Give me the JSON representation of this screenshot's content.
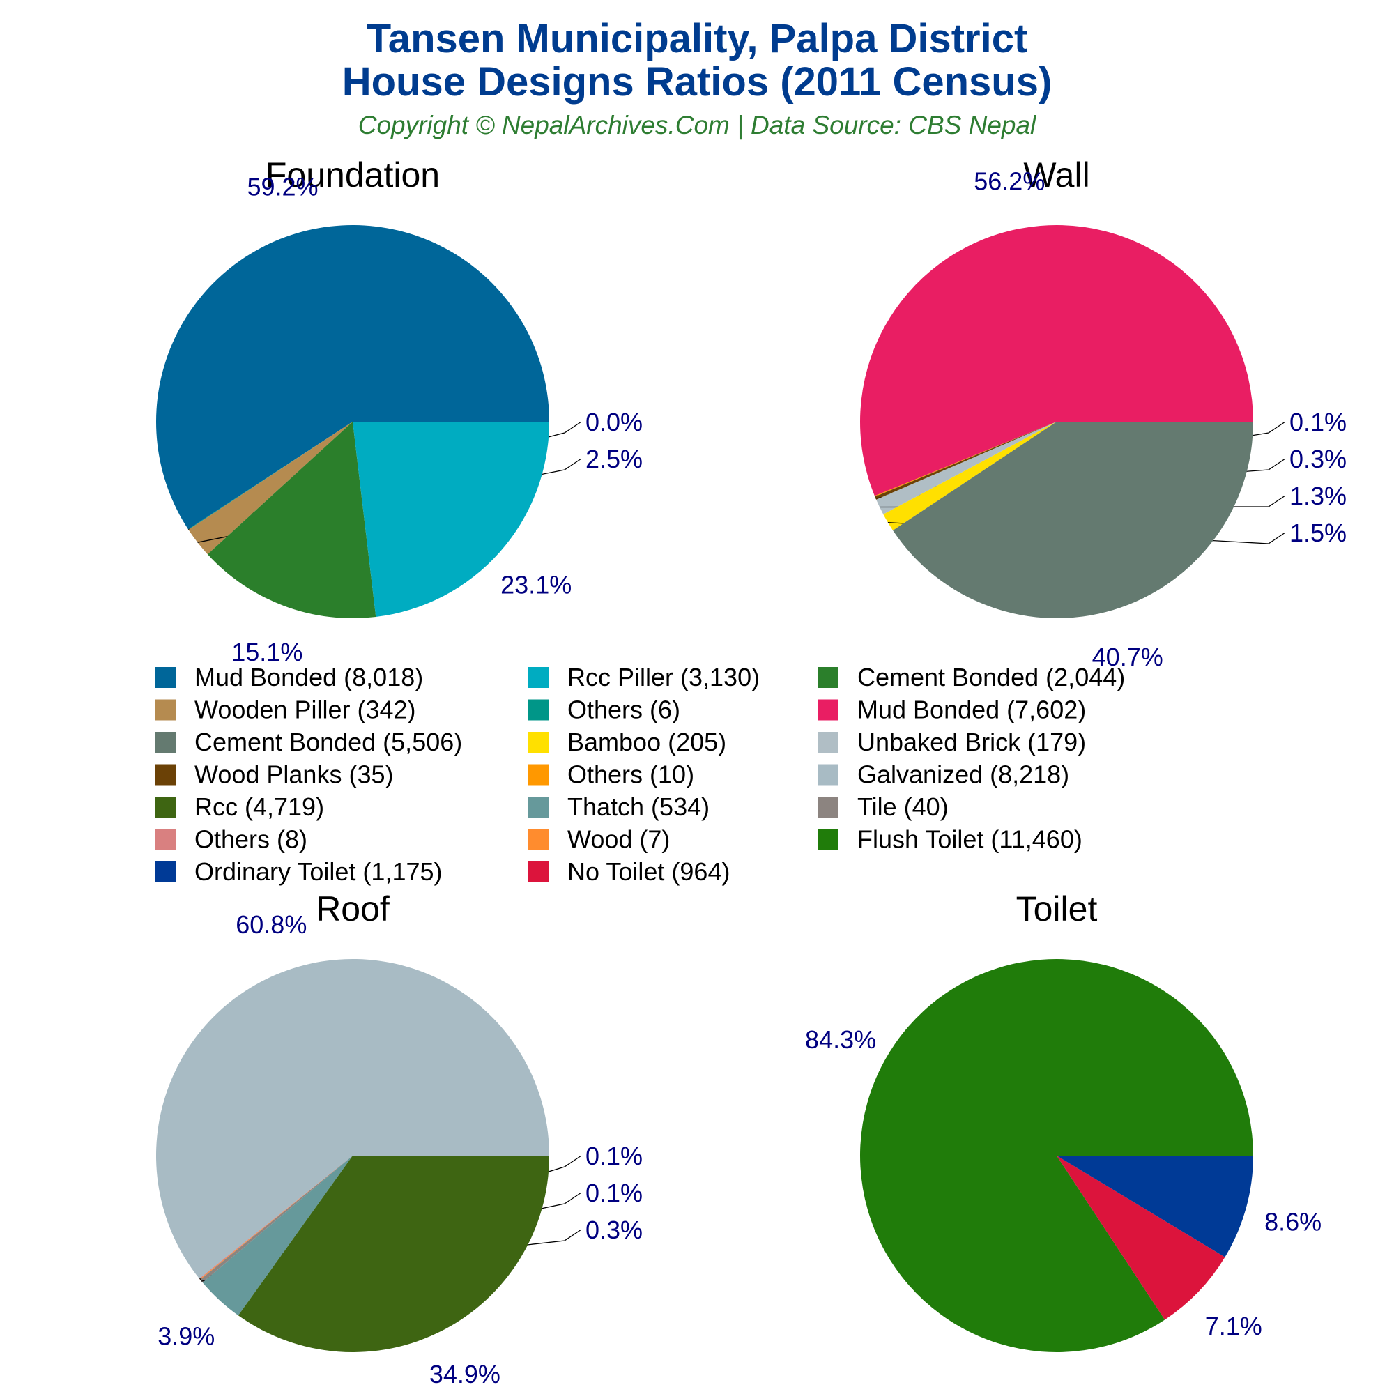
{
  "header": {
    "title_line1": "Tansen Municipality, Palpa District",
    "title_line2": "House Designs Ratios (2011 Census)",
    "subtitle": "Copyright © NepalArchives.Com | Data Source: CBS Nepal"
  },
  "chart_data": [
    {
      "type": "pie",
      "title": "Foundation",
      "slices": [
        {
          "label": "Mud Bonded",
          "value": 8018,
          "pct_label": "59.2%",
          "color": "#006699"
        },
        {
          "label": "Others",
          "value": 6,
          "pct_label": "0.0%",
          "color": "#009688"
        },
        {
          "label": "Wooden Piller",
          "value": 342,
          "pct_label": "2.5%",
          "color": "#b58b50"
        },
        {
          "label": "Cement Bonded",
          "value": 2044,
          "pct_label": "15.1%",
          "color": "#2b7f2b"
        },
        {
          "label": "Rcc Piller",
          "value": 3130,
          "pct_label": "23.1%",
          "color": "#00acc1"
        }
      ]
    },
    {
      "type": "pie",
      "title": "Wall",
      "slices": [
        {
          "label": "Mud Bonded",
          "value": 7602,
          "pct_label": "56.2%",
          "color": "#e91e63"
        },
        {
          "label": "Others",
          "value": 10,
          "pct_label": "0.1%",
          "color": "#ff9800"
        },
        {
          "label": "Wood Planks",
          "value": 35,
          "pct_label": "0.3%",
          "color": "#6b4106"
        },
        {
          "label": "Unbaked Brick",
          "value": 179,
          "pct_label": "1.3%",
          "color": "#b0bec5"
        },
        {
          "label": "Bamboo",
          "value": 205,
          "pct_label": "1.5%",
          "color": "#ffe000"
        },
        {
          "label": "Cement Bonded",
          "value": 5506,
          "pct_label": "40.7%",
          "color": "#647a70"
        }
      ]
    },
    {
      "type": "pie",
      "title": "Roof",
      "slices": [
        {
          "label": "Galvanized",
          "value": 8218,
          "pct_label": "60.8%",
          "color": "#a8bbc4"
        },
        {
          "label": "Others",
          "value": 8,
          "pct_label": "0.1%",
          "color": "#d98080"
        },
        {
          "label": "Wood",
          "value": 7,
          "pct_label": "0.1%",
          "color": "#ff8c2e"
        },
        {
          "label": "Tile",
          "value": 40,
          "pct_label": "0.3%",
          "color": "#8c8480"
        },
        {
          "label": "Thatch",
          "value": 534,
          "pct_label": "3.9%",
          "color": "#66999b"
        },
        {
          "label": "Rcc",
          "value": 4719,
          "pct_label": "34.9%",
          "color": "#3e6512"
        }
      ]
    },
    {
      "type": "pie",
      "title": "Toilet",
      "slices": [
        {
          "label": "Flush Toilet",
          "value": 11460,
          "pct_label": "84.3%",
          "color": "#207c0a"
        },
        {
          "label": "No Toilet",
          "value": 964,
          "pct_label": "7.1%",
          "color": "#dc143c"
        },
        {
          "label": "Ordinary Toilet",
          "value": 1175,
          "pct_label": "8.6%",
          "color": "#003a96"
        }
      ]
    }
  ],
  "legend": {
    "items": [
      {
        "label": "Mud Bonded (8,018)",
        "color": "#006699"
      },
      {
        "label": "Rcc Piller (3,130)",
        "color": "#00acc1"
      },
      {
        "label": "Cement Bonded (2,044)",
        "color": "#2b7f2b"
      },
      {
        "label": "Wooden Piller (342)",
        "color": "#b58b50"
      },
      {
        "label": "Others (6)",
        "color": "#009688"
      },
      {
        "label": "Mud Bonded (7,602)",
        "color": "#e91e63"
      },
      {
        "label": "Cement Bonded (5,506)",
        "color": "#647a70"
      },
      {
        "label": "Bamboo (205)",
        "color": "#ffe000"
      },
      {
        "label": "Unbaked Brick (179)",
        "color": "#b0bec5"
      },
      {
        "label": "Wood Planks (35)",
        "color": "#6b4106"
      },
      {
        "label": "Others (10)",
        "color": "#ff9800"
      },
      {
        "label": "Galvanized (8,218)",
        "color": "#a8bbc4"
      },
      {
        "label": "Rcc (4,719)",
        "color": "#3e6512"
      },
      {
        "label": "Thatch (534)",
        "color": "#66999b"
      },
      {
        "label": "Tile (40)",
        "color": "#8c8480"
      },
      {
        "label": "Others (8)",
        "color": "#d98080"
      },
      {
        "label": "Wood (7)",
        "color": "#ff8c2e"
      },
      {
        "label": "Flush Toilet (11,460)",
        "color": "#207c0a"
      },
      {
        "label": "Ordinary Toilet (1,175)",
        "color": "#003a96"
      },
      {
        "label": "No Toilet (964)",
        "color": "#dc143c"
      }
    ]
  }
}
